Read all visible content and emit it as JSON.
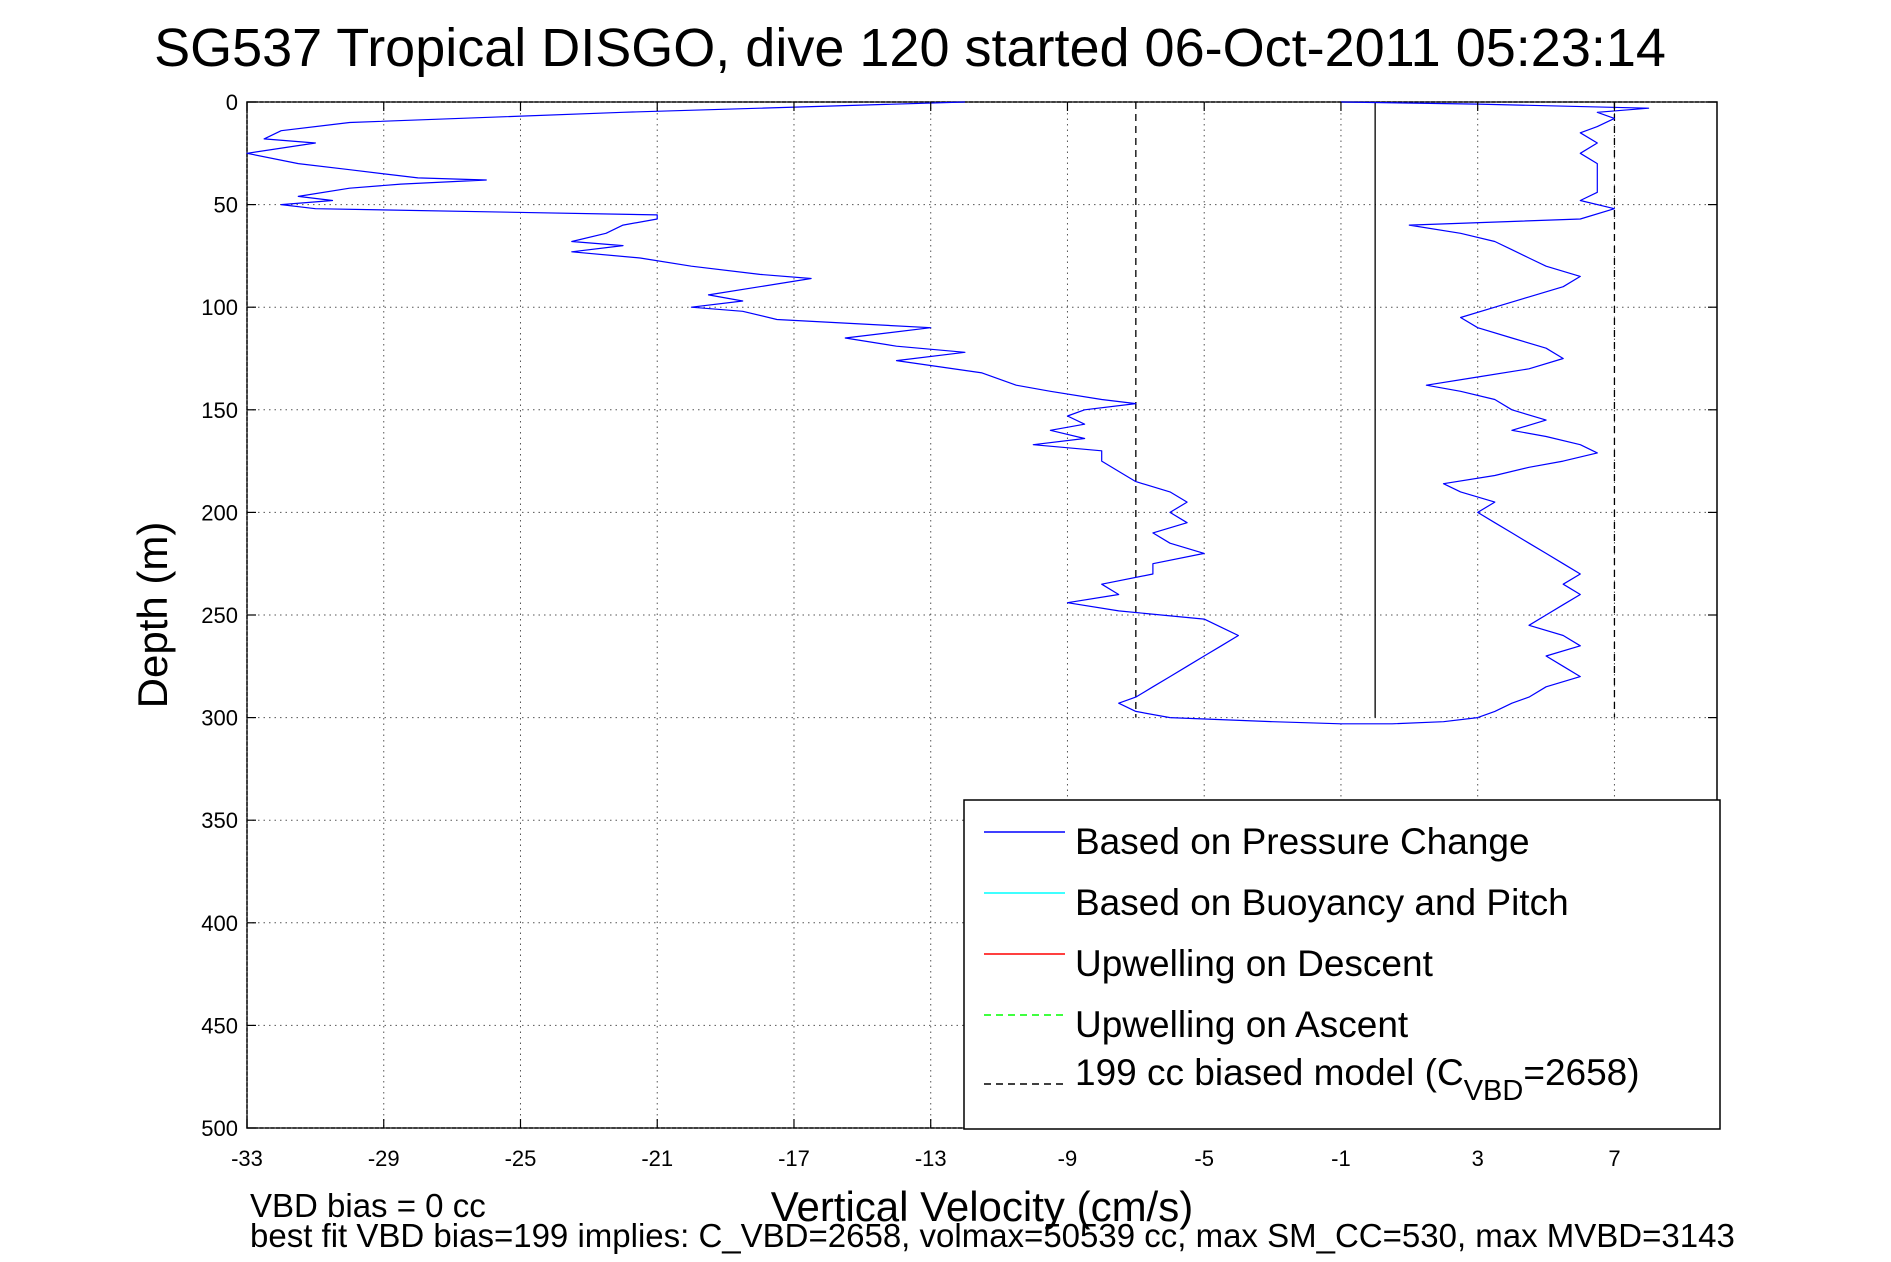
{
  "chart_data": {
    "type": "line",
    "title": "SG537 Tropical DISGO, dive 120 started 06-Oct-2011 05:23:14",
    "xlabel": "Vertical Velocity (cm/s)",
    "ylabel": "Depth (m)",
    "xlim": [
      -33,
      10
    ],
    "ylim": [
      0,
      500
    ],
    "y_reversed": true,
    "grid": true,
    "xticks": [
      "-33",
      "-29",
      "-25",
      "-21",
      "-17",
      "-13",
      "-9",
      "-5",
      "-1",
      "3",
      "7"
    ],
    "yticks": [
      "0",
      "50",
      "100",
      "150",
      "200",
      "250",
      "300",
      "350",
      "400",
      "450",
      "500"
    ],
    "legend_placement": "lower-right",
    "legend": [
      {
        "label": "Based on Pressure Change",
        "color": "#0000ff",
        "style": "solid"
      },
      {
        "label": "Based on Buoyancy and Pitch",
        "color": "#00ffff",
        "style": "solid"
      },
      {
        "label": "Upwelling on Descent",
        "color": "#ff0000",
        "style": "solid"
      },
      {
        "label": "Upwelling on Ascent",
        "color": "#00ff00",
        "style": "dashed"
      },
      {
        "label_main": "199 cc biased model (C",
        "label_sub": "VBD",
        "label_end": "=2658)",
        "color": "#000000",
        "style": "dashed"
      }
    ],
    "series": [
      {
        "name": "Based on Pressure Change",
        "color": "#0000ff",
        "points": [
          [
            -12,
            0
          ],
          [
            -18,
            3
          ],
          [
            -22,
            5
          ],
          [
            -30,
            10
          ],
          [
            -32,
            14
          ],
          [
            -32.5,
            18
          ],
          [
            -31,
            20
          ],
          [
            -33,
            25
          ],
          [
            -31.5,
            30
          ],
          [
            -30,
            33
          ],
          [
            -28,
            37
          ],
          [
            -26,
            38
          ],
          [
            -28.5,
            40
          ],
          [
            -30,
            42
          ],
          [
            -31.5,
            46
          ],
          [
            -30.5,
            48
          ],
          [
            -32,
            50
          ],
          [
            -31,
            52
          ],
          [
            -21,
            55
          ],
          [
            -21,
            57
          ],
          [
            -22,
            60
          ],
          [
            -22.5,
            64
          ],
          [
            -23.5,
            68
          ],
          [
            -22,
            70
          ],
          [
            -23.5,
            73
          ],
          [
            -21.5,
            76
          ],
          [
            -20,
            80
          ],
          [
            -18,
            84
          ],
          [
            -16.5,
            86
          ],
          [
            -18,
            90
          ],
          [
            -19.5,
            94
          ],
          [
            -18.5,
            97
          ],
          [
            -20,
            100
          ],
          [
            -18.5,
            102
          ],
          [
            -17.5,
            106
          ],
          [
            -13,
            110
          ],
          [
            -15.5,
            115
          ],
          [
            -14,
            119
          ],
          [
            -12,
            122
          ],
          [
            -14,
            126
          ],
          [
            -11.5,
            132
          ],
          [
            -10.5,
            138
          ],
          [
            -9.5,
            141
          ],
          [
            -8,
            145
          ],
          [
            -7,
            147
          ],
          [
            -8.5,
            150
          ],
          [
            -9,
            153
          ],
          [
            -8.5,
            157
          ],
          [
            -9.5,
            160
          ],
          [
            -8.5,
            164
          ],
          [
            -10,
            167
          ],
          [
            -8,
            170
          ],
          [
            -8,
            175
          ],
          [
            -7.5,
            180
          ],
          [
            -7,
            185
          ],
          [
            -6,
            190
          ],
          [
            -5.5,
            195
          ],
          [
            -6,
            200
          ],
          [
            -5.5,
            205
          ],
          [
            -6.5,
            210
          ],
          [
            -6,
            215
          ],
          [
            -5,
            220
          ],
          [
            -6.5,
            225
          ],
          [
            -6.5,
            230
          ],
          [
            -8,
            235
          ],
          [
            -7.5,
            240
          ],
          [
            -9,
            244
          ],
          [
            -7.5,
            248
          ],
          [
            -5,
            252
          ],
          [
            -4.5,
            256
          ],
          [
            -4,
            260
          ],
          [
            -4.5,
            265
          ],
          [
            -5,
            270
          ],
          [
            -5.5,
            275
          ],
          [
            -6,
            280
          ],
          [
            -6.5,
            285
          ],
          [
            -7,
            290
          ],
          [
            -7.5,
            293
          ],
          [
            -7,
            297
          ],
          [
            -6,
            300
          ],
          [
            -3,
            302
          ],
          [
            -1,
            303
          ],
          [
            0.5,
            303
          ],
          [
            2,
            302
          ],
          [
            3,
            300
          ],
          [
            3.5,
            297
          ],
          [
            4,
            293
          ],
          [
            4.5,
            290
          ],
          [
            5,
            285
          ],
          [
            6,
            280
          ],
          [
            5.5,
            275
          ],
          [
            5,
            270
          ],
          [
            6,
            265
          ],
          [
            5.5,
            260
          ],
          [
            4.5,
            255
          ],
          [
            5,
            250
          ],
          [
            5.5,
            245
          ],
          [
            6,
            240
          ],
          [
            5.5,
            235
          ],
          [
            6,
            230
          ],
          [
            5.5,
            225
          ],
          [
            5,
            220
          ],
          [
            4.5,
            215
          ],
          [
            4,
            210
          ],
          [
            3.5,
            205
          ],
          [
            3,
            200
          ],
          [
            3.5,
            195
          ],
          [
            2.5,
            190
          ],
          [
            2,
            186
          ],
          [
            3.5,
            182
          ],
          [
            4.5,
            178
          ],
          [
            5.5,
            175
          ],
          [
            6.5,
            171
          ],
          [
            6,
            167
          ],
          [
            5,
            163
          ],
          [
            4,
            160
          ],
          [
            5,
            155
          ],
          [
            4,
            150
          ],
          [
            3.5,
            145
          ],
          [
            2.5,
            141
          ],
          [
            1.5,
            138
          ],
          [
            3,
            134
          ],
          [
            4.5,
            130
          ],
          [
            5.5,
            125
          ],
          [
            5,
            120
          ],
          [
            4,
            115
          ],
          [
            3,
            110
          ],
          [
            2.5,
            105
          ],
          [
            3.5,
            100
          ],
          [
            4.5,
            95
          ],
          [
            5.5,
            90
          ],
          [
            6,
            85
          ],
          [
            5,
            80
          ],
          [
            4.5,
            76
          ],
          [
            4,
            72
          ],
          [
            3.5,
            68
          ],
          [
            2.5,
            64
          ],
          [
            1,
            60
          ],
          [
            6,
            57
          ],
          [
            7,
            52
          ],
          [
            6,
            48
          ],
          [
            6.5,
            44
          ],
          [
            6.5,
            40
          ],
          [
            6.5,
            35
          ],
          [
            6.5,
            30
          ],
          [
            6,
            25
          ],
          [
            6.5,
            20
          ],
          [
            6,
            15
          ],
          [
            6.5,
            12
          ],
          [
            7,
            8
          ],
          [
            6.5,
            5
          ],
          [
            8,
            3
          ],
          [
            3,
            1
          ],
          [
            -1,
            0
          ]
        ]
      }
    ],
    "reference_lines": [
      {
        "x": -7,
        "style": "dashed",
        "color": "#000000",
        "y_range": [
          0,
          300
        ]
      },
      {
        "x": 7,
        "style": "dashed",
        "color": "#000000",
        "y_range": [
          0,
          300
        ]
      },
      {
        "x": 0,
        "style": "solid",
        "color": "#000000",
        "y_range": [
          0,
          300
        ]
      }
    ],
    "footnotes": [
      "VBD bias = 0 cc",
      "best fit VBD bias=199 implies: C_VBD=2658, volmax=50539 cc, max SM_CC=530, max MVBD=3143"
    ]
  }
}
